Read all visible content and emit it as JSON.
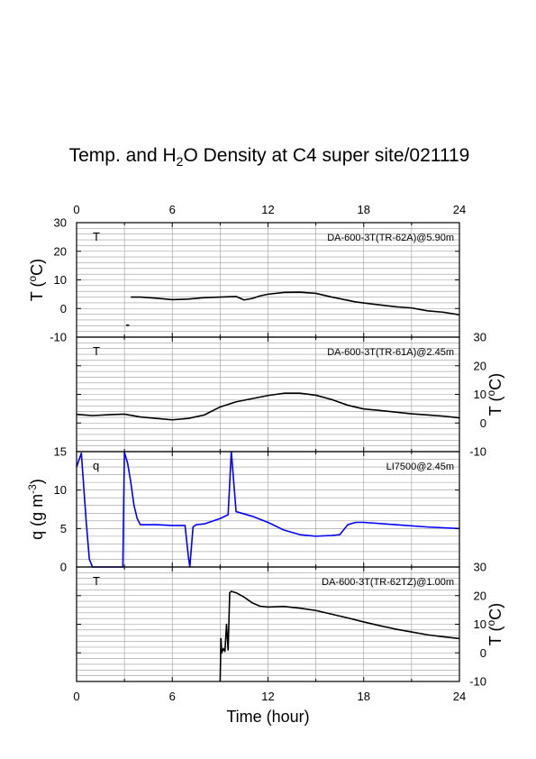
{
  "title": {
    "prefix": "Temp. and H",
    "sub": "2",
    "suffix": "O Density at C4 super site/021119"
  },
  "chart_data": [
    {
      "type": "line",
      "panel_label": "T",
      "annotation": "DA-600-3T(TR-62A)@5.90m",
      "xlabel": "",
      "top_tick_labels": [
        "0",
        "6",
        "12",
        "18",
        "24"
      ],
      "xlim": [
        0,
        24
      ],
      "ylabel": {
        "main": "T (",
        "sup": "o",
        "rest": "C)"
      },
      "ylim": [
        -10,
        30
      ],
      "y_ticks": [
        "30",
        "20",
        "10",
        "0",
        "-10"
      ],
      "y_axis_side": "left",
      "grid": true,
      "color": "#000000",
      "series": [
        {
          "x": [
            3.1,
            3.3
          ],
          "values": [
            -5.8,
            -5.9
          ]
        },
        {
          "x": [
            3.4,
            4.0,
            5.0,
            6.0,
            7.0,
            8.0,
            9.0,
            10.0,
            10.5,
            11.0,
            11.5,
            12.0,
            13.0,
            14.0,
            15.0,
            16.0,
            16.8,
            17.5,
            18.5,
            20.0,
            21.0,
            22.0,
            23.0,
            24.0
          ],
          "values": [
            4.0,
            4.0,
            3.6,
            3.1,
            3.3,
            3.8,
            4.0,
            4.2,
            3.0,
            3.5,
            4.4,
            5.0,
            5.6,
            5.7,
            5.3,
            4.0,
            3.1,
            2.3,
            1.6,
            0.6,
            0.2,
            -0.8,
            -1.3,
            -2.2
          ]
        }
      ]
    },
    {
      "type": "line",
      "panel_label": "T",
      "annotation": "DA-600-3T(TR-61A)@2.45m",
      "xlim": [
        0,
        24
      ],
      "ylabel": {
        "main": "T (",
        "sup": "o",
        "rest": "C)"
      },
      "ylim": [
        -10,
        30
      ],
      "y_ticks": [
        "30",
        "20",
        "10",
        "0",
        "-10"
      ],
      "y_axis_side": "right",
      "grid": true,
      "color": "#000000",
      "series": [
        {
          "x": [
            0.0,
            1.0,
            2.0,
            3.0,
            4.0,
            5.0,
            6.0,
            7.0,
            8.0,
            9.0,
            10.0,
            11.0,
            12.0,
            13.0,
            14.0,
            15.0,
            16.0,
            17.0,
            18.0,
            19.0,
            20.0,
            21.0,
            22.0,
            23.0,
            24.0
          ],
          "values": [
            3.0,
            2.6,
            2.9,
            3.1,
            2.1,
            1.6,
            1.1,
            1.6,
            2.8,
            5.6,
            7.4,
            8.5,
            9.6,
            10.4,
            10.4,
            9.7,
            8.2,
            6.2,
            4.9,
            4.4,
            3.8,
            3.2,
            2.8,
            2.4,
            1.8
          ]
        }
      ]
    },
    {
      "type": "line",
      "panel_label": "q",
      "annotation": "LI7500@2.45m",
      "xlim": [
        0,
        24
      ],
      "ylabel": {
        "main": "q (g m",
        "sup": "-3",
        "rest": ")"
      },
      "ylim": [
        0,
        15
      ],
      "y_ticks": [
        "15",
        "10",
        "5",
        "0"
      ],
      "y_axis_side": "left",
      "grid": true,
      "color": "#0000ff",
      "series": [
        {
          "x": [
            0.0,
            0.3,
            0.6,
            0.8,
            1.0,
            1.5,
            2.0,
            2.5,
            2.9,
            3.0,
            3.2,
            3.4,
            3.6,
            3.8,
            4.0,
            5.0,
            6.0,
            6.8,
            7.0,
            7.1,
            7.3,
            7.5,
            8.0,
            9.0,
            9.5,
            9.7,
            10.0,
            11.0,
            12.0,
            13.0,
            14.0,
            15.0,
            16.0,
            16.5,
            17.0,
            17.5,
            18.0,
            20.0,
            22.0,
            24.0
          ],
          "values": [
            13.0,
            14.8,
            6.0,
            1.0,
            0.0,
            0.0,
            0.0,
            0.0,
            0.0,
            14.9,
            13.5,
            11.0,
            8.0,
            6.3,
            5.5,
            5.5,
            5.4,
            5.4,
            1.5,
            0.0,
            5.2,
            5.5,
            5.6,
            6.3,
            6.8,
            15.0,
            7.2,
            6.6,
            5.8,
            4.8,
            4.2,
            4.0,
            4.1,
            4.2,
            5.5,
            5.8,
            5.8,
            5.5,
            5.2,
            5.0
          ]
        }
      ]
    },
    {
      "type": "line",
      "panel_label": "T",
      "annotation": "DA-600-3T(TR-62TZ)@1.00m",
      "xlabel": "Time (hour)",
      "x_tick_labels": [
        "0",
        "6",
        "12",
        "18",
        "24"
      ],
      "xlim": [
        0,
        24
      ],
      "ylabel": {
        "main": "T (",
        "sup": "o",
        "rest": "C)"
      },
      "ylim": [
        -10,
        30
      ],
      "y_ticks": [
        "30",
        "20",
        "10",
        "0",
        "-10"
      ],
      "y_axis_side": "right",
      "grid": true,
      "color": "#000000",
      "series": [
        {
          "x": [
            9.0,
            9.05,
            9.1,
            9.2,
            9.3,
            9.4,
            9.5,
            9.6,
            9.7,
            10.0,
            10.5,
            11.0,
            11.5,
            12.0,
            13.0,
            14.0,
            15.0,
            16.0,
            17.0,
            18.0,
            19.0,
            20.0,
            21.0,
            22.0,
            23.0,
            24.0
          ],
          "values": [
            -10.0,
            5.0,
            0.0,
            1.5,
            0.5,
            10.0,
            1.0,
            21.0,
            21.5,
            21.0,
            19.5,
            17.5,
            16.3,
            16.0,
            16.2,
            15.6,
            14.8,
            13.5,
            12.2,
            10.8,
            9.5,
            8.3,
            7.3,
            6.3,
            5.6,
            5.0
          ]
        }
      ]
    }
  ]
}
